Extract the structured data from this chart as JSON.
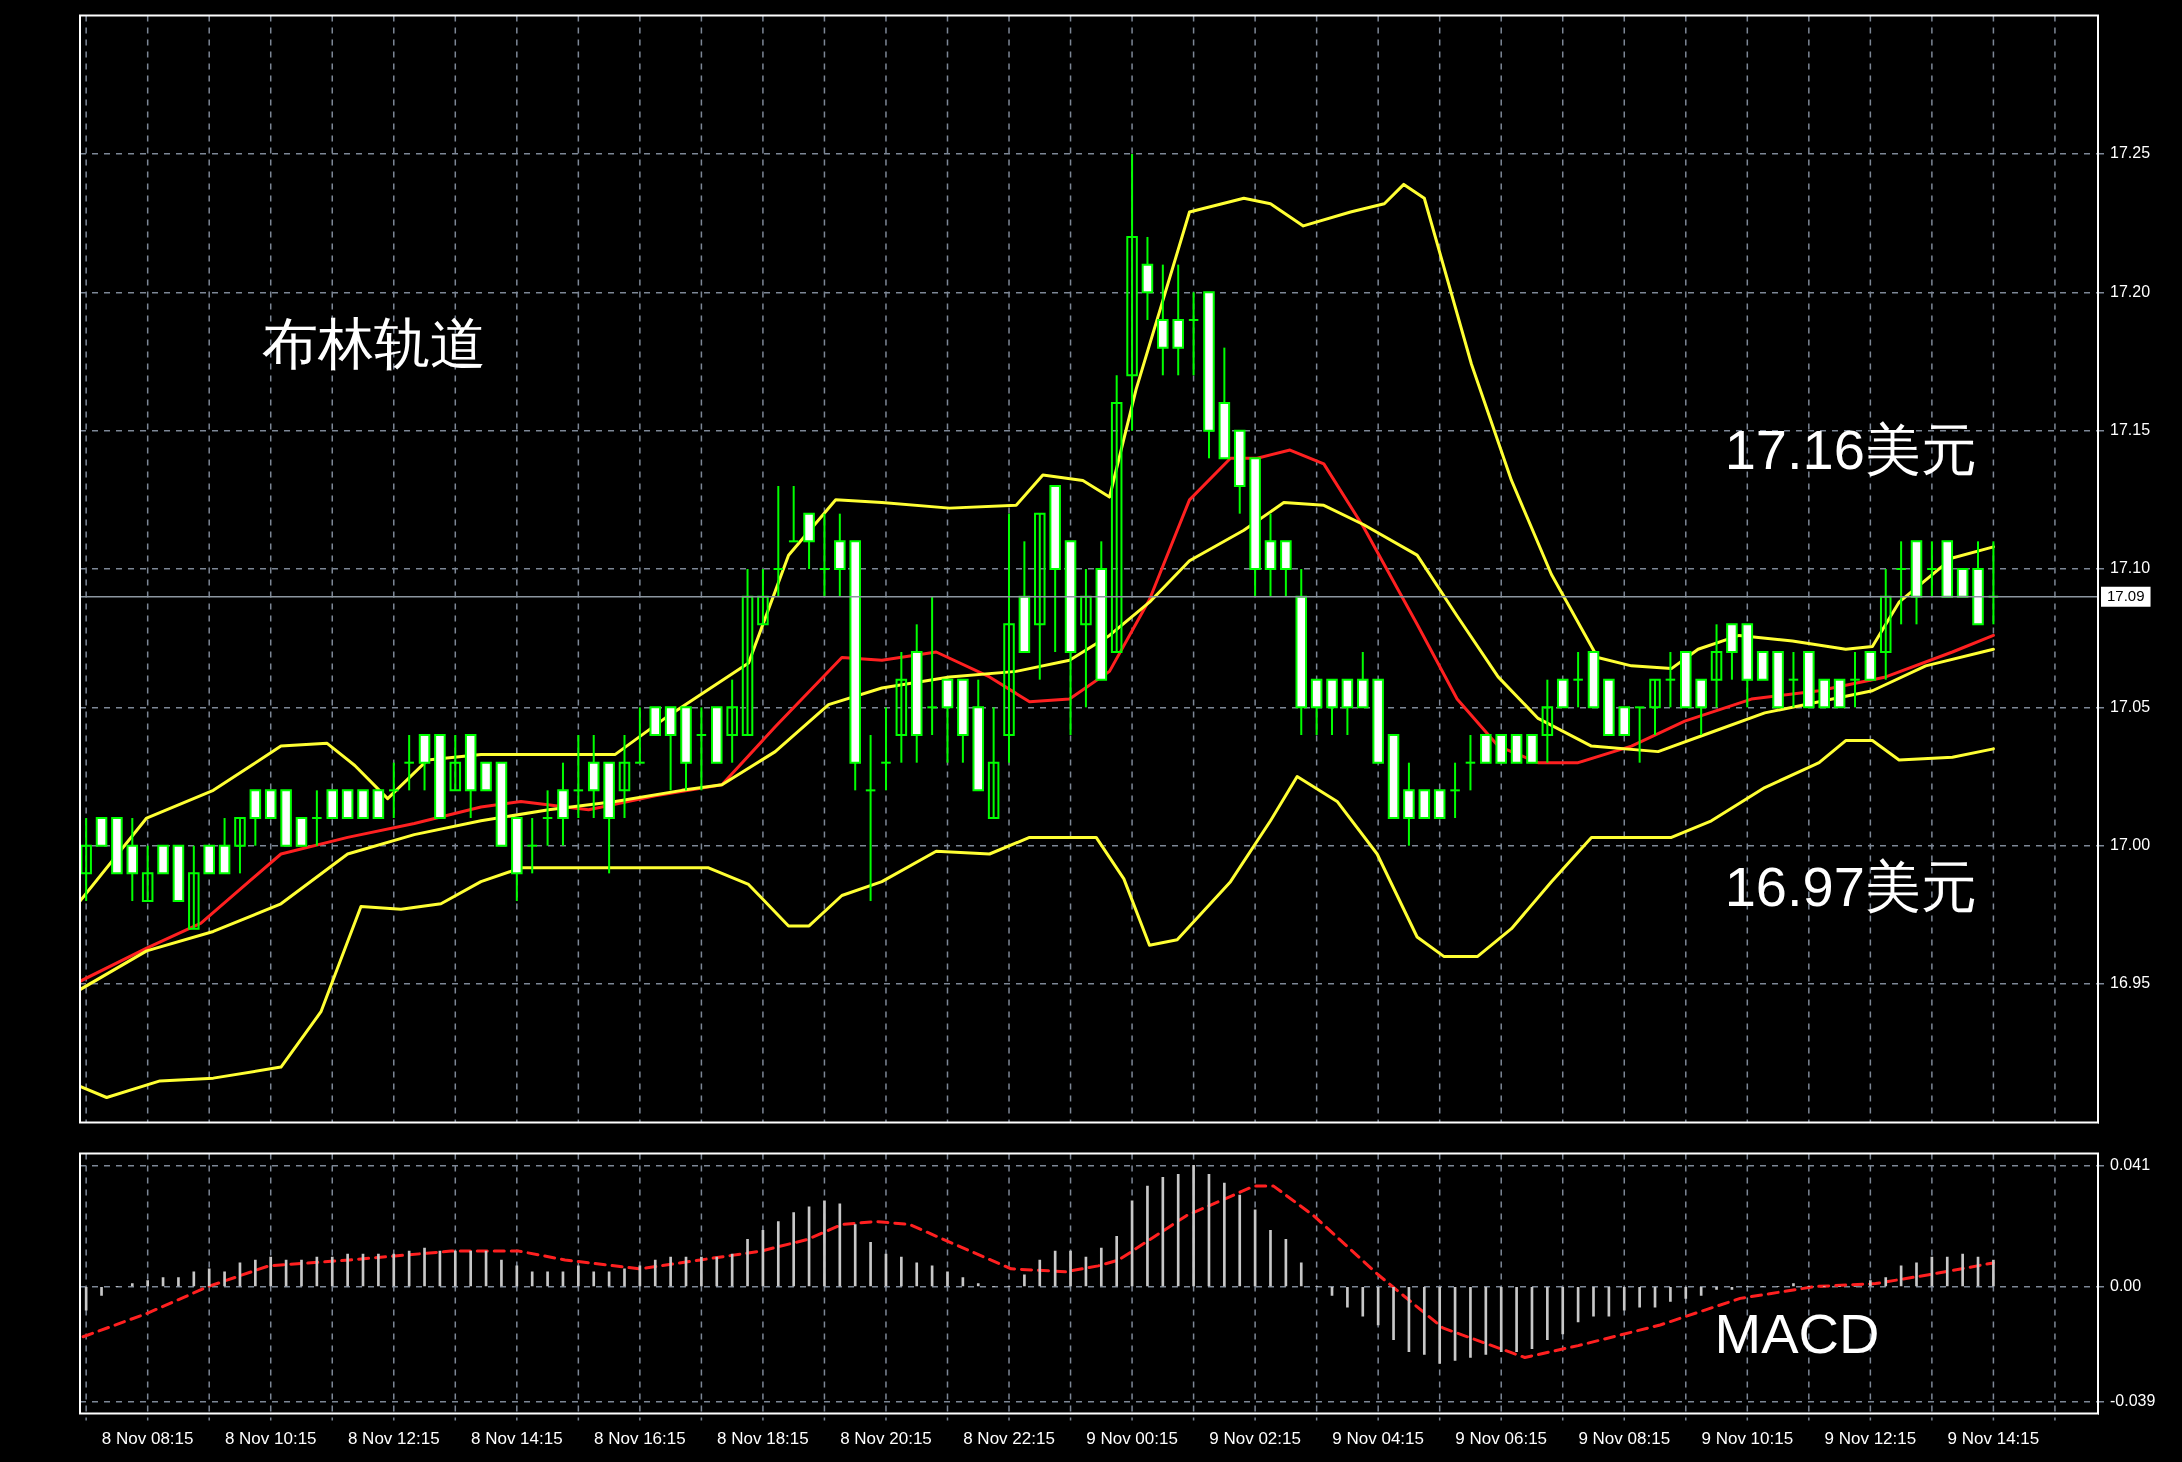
{
  "chart_data": [
    {
      "type": "candlestick",
      "annotations": [
        "布林轨道",
        "17.16美元",
        "16.97美元"
      ],
      "color": "#00ff00",
      "colors": [
        "#00ff00",
        "#ffffff",
        "#ffffff",
        "#ffffff",
        "#00ff00",
        "#ffffff",
        "#ffffff",
        "#00ff00",
        "#ffffff",
        "#ffffff",
        "#00ff00",
        "#ffffff",
        "#ffffff",
        "#ffffff",
        "#ffffff",
        "#00ff00",
        "#ffffff",
        "#ffffff",
        "#ffffff",
        "#ffffff",
        "#00ff00",
        "#00ff00",
        "#ffffff",
        "#ffffff",
        "#00ff00",
        "#ffffff",
        "#ffffff",
        "#ffffff",
        "#ffffff",
        "#00ff00",
        "#00ff00",
        "#ffffff",
        "#00ff00",
        "#ffffff",
        "#ffffff",
        "#00ff00",
        "#00ff00",
        "#ffffff",
        "#ffffff",
        "#ffffff",
        "#00ff00",
        "#ffffff",
        "#00ff00",
        "#00ff00",
        "#00ff00",
        "#00ff00",
        "#00ff00",
        "#ffffff",
        "#00ff00",
        "#ffffff",
        "#ffffff",
        "#00ff00",
        "#00ff00",
        "#00ff00",
        "#ffffff",
        "#00ff00",
        "#ffffff",
        "#ffffff",
        "#ffffff",
        "#00ff00",
        "#00ff00",
        "#ffffff",
        "#00ff00",
        "#ffffff",
        "#ffffff",
        "#00ff00",
        "#ffffff",
        "#00ff00",
        "#00ff00",
        "#ffffff",
        "#ffffff",
        "#ffffff",
        "#00ff00",
        "#ffffff",
        "#ffffff",
        "#ffffff",
        "#ffffff",
        "#ffffff",
        "#ffffff",
        "#ffffff",
        "#ffffff",
        "#ffffff",
        "#ffffff",
        "#ffffff",
        "#ffffff",
        "#ffffff",
        "#ffffff",
        "#ffffff",
        "#ffffff",
        "#00ff00",
        "#00ff00",
        "#ffffff",
        "#ffffff",
        "#ffffff",
        "#ffffff",
        "#00ff00",
        "#ffffff",
        "#00ff00",
        "#ffffff",
        "#ffffff",
        "#ffffff",
        "#00ff00",
        "#00ff00",
        "#00ff00",
        "#ffffff",
        "#ffffff",
        "#00ff00",
        "#ffffff",
        "#ffffff",
        "#ffffff",
        "#ffffff",
        "#00ff00",
        "#ffffff",
        "#ffffff",
        "#ffffff",
        "#00ff00",
        "#ffffff",
        "#00ff00",
        "#00ff00",
        "#ffffff",
        "#00ff00",
        "#ffffff",
        "#ffffff",
        "#ffffff",
        "#00ff00"
      ],
      "x": [
        "--11-08T07:15",
        "--11-08T07:30",
        "--11-08T07:45",
        "--11-08T08:00",
        "--11-08T08:15",
        "--11-08T08:30",
        "--11-08T08:45",
        "--11-08T09:00",
        "--11-08T09:15",
        "--11-08T09:30",
        "--11-08T09:45",
        "--11-08T10:00",
        "--11-08T10:15",
        "--11-08T10:30",
        "--11-08T10:45",
        "--11-08T11:00",
        "--11-08T11:15",
        "--11-08T11:30",
        "--11-08T11:45",
        "--11-08T12:00",
        "--11-08T12:15",
        "--11-08T12:30",
        "--11-08T12:45",
        "--11-08T13:00",
        "--11-08T13:15",
        "--11-08T13:30",
        "--11-08T13:45",
        "--11-08T14:00",
        "--11-08T14:15",
        "--11-08T14:30",
        "--11-08T14:45",
        "--11-08T15:00",
        "--11-08T15:15",
        "--11-08T15:30",
        "--11-08T15:45",
        "--11-08T16:00",
        "--11-08T16:15",
        "--11-08T16:30",
        "--11-08T16:45",
        "--11-08T17:00",
        "--11-08T17:15",
        "--11-08T17:30",
        "--11-08T17:45",
        "--11-08T18:00",
        "--11-08T18:15",
        "--11-08T18:30",
        "--11-08T18:45",
        "--11-08T19:00",
        "--11-08T19:15",
        "--11-08T19:30",
        "--11-08T19:45",
        "--11-08T20:00",
        "--11-08T20:15",
        "--11-08T20:30",
        "--11-08T20:45",
        "--11-08T21:00",
        "--11-08T21:15",
        "--11-08T21:30",
        "--11-08T21:45",
        "--11-08T22:00",
        "--11-08T22:15",
        "--11-08T22:30",
        "--11-08T22:45",
        "--11-08T23:00",
        "--11-08T23:15",
        "--11-08T23:30",
        "--11-08T23:45",
        "--11-09T00:00",
        "--11-09T00:15",
        "--11-09T00:30",
        "--11-09T00:45",
        "--11-09T01:00",
        "--11-09T01:15",
        "--11-09T01:30",
        "--11-09T01:45",
        "--11-09T02:00",
        "--11-09T02:15",
        "--11-09T02:30",
        "--11-09T02:45",
        "--11-09T03:00",
        "--11-09T03:15",
        "--11-09T03:30",
        "--11-09T03:45",
        "--11-09T04:00",
        "--11-09T04:15",
        "--11-09T04:30",
        "--11-09T04:45",
        "--11-09T05:00",
        "--11-09T05:15",
        "--11-09T05:30",
        "--11-09T05:45",
        "--11-09T06:00",
        "--11-09T06:15",
        "--11-09T06:30",
        "--11-09T06:45",
        "--11-09T07:00",
        "--11-09T07:15",
        "--11-09T07:30",
        "--11-09T07:45",
        "--11-09T08:00",
        "--11-09T08:15",
        "--11-09T08:30",
        "--11-09T08:45",
        "--11-09T09:00",
        "--11-09T09:15",
        "--11-09T09:30",
        "--11-09T09:45",
        "--11-09T10:00",
        "--11-09T10:15",
        "--11-09T10:30",
        "--11-09T10:45",
        "--11-09T11:00",
        "--11-09T11:15",
        "--11-09T11:30",
        "--11-09T11:45",
        "--11-09T12:00",
        "--11-09T12:15",
        "--11-09T12:30",
        "--11-09T12:45",
        "--11-09T13:00",
        "--11-09T13:15",
        "--11-09T13:30",
        "--11-09T13:45",
        "--11-09T14:00",
        "--11-09T14:15"
      ],
      "ohlc": [
        [
          16.99,
          17.01,
          16.98,
          17.0
        ],
        [
          17.01,
          17.01,
          17.0,
          17.0
        ],
        [
          17.01,
          17.01,
          16.99,
          16.99
        ],
        [
          17.0,
          17.01,
          16.98,
          16.99
        ],
        [
          16.98,
          17.0,
          16.98,
          16.99
        ],
        [
          17.0,
          17.0,
          16.99,
          16.99
        ],
        [
          17.0,
          17.0,
          16.98,
          16.98
        ],
        [
          16.97,
          17.0,
          16.97,
          16.99
        ],
        [
          17.0,
          17.0,
          16.99,
          16.99
        ],
        [
          17.0,
          17.01,
          16.99,
          16.99
        ],
        [
          17.0,
          17.01,
          16.99,
          17.01
        ],
        [
          17.02,
          17.02,
          17.0,
          17.01
        ],
        [
          17.02,
          17.02,
          17.01,
          17.01
        ],
        [
          17.02,
          17.02,
          17.0,
          17.0
        ],
        [
          17.01,
          17.01,
          17.0,
          17.0
        ],
        [
          17.01,
          17.02,
          17.0,
          17.01
        ],
        [
          17.02,
          17.02,
          17.01,
          17.01
        ],
        [
          17.02,
          17.02,
          17.01,
          17.01
        ],
        [
          17.02,
          17.02,
          17.01,
          17.01
        ],
        [
          17.02,
          17.02,
          17.01,
          17.01
        ],
        [
          17.02,
          17.03,
          17.01,
          17.02
        ],
        [
          17.03,
          17.04,
          17.02,
          17.03
        ],
        [
          17.04,
          17.04,
          17.02,
          17.03
        ],
        [
          17.04,
          17.04,
          17.01,
          17.01
        ],
        [
          17.02,
          17.04,
          17.02,
          17.03
        ],
        [
          17.04,
          17.04,
          17.01,
          17.02
        ],
        [
          17.03,
          17.03,
          17.02,
          17.02
        ],
        [
          17.03,
          17.03,
          17.0,
          17.0
        ],
        [
          17.01,
          17.01,
          16.98,
          16.99
        ],
        [
          17.0,
          17.01,
          16.99,
          17.0
        ],
        [
          17.01,
          17.02,
          17.0,
          17.01
        ],
        [
          17.02,
          17.03,
          17.0,
          17.01
        ],
        [
          17.02,
          17.04,
          17.01,
          17.02
        ],
        [
          17.03,
          17.04,
          17.01,
          17.02
        ],
        [
          17.03,
          17.03,
          16.99,
          17.01
        ],
        [
          17.02,
          17.04,
          17.01,
          17.03
        ],
        [
          17.03,
          17.05,
          17.03,
          17.03
        ],
        [
          17.05,
          17.05,
          17.04,
          17.04
        ],
        [
          17.05,
          17.05,
          17.02,
          17.04
        ],
        [
          17.05,
          17.05,
          17.02,
          17.03
        ],
        [
          17.04,
          17.05,
          17.02,
          17.04
        ],
        [
          17.05,
          17.05,
          17.03,
          17.03
        ],
        [
          17.04,
          17.06,
          17.03,
          17.05
        ],
        [
          17.04,
          17.1,
          17.04,
          17.09
        ],
        [
          17.08,
          17.1,
          17.08,
          17.09
        ],
        [
          17.1,
          17.13,
          17.09,
          17.1
        ],
        [
          17.11,
          17.13,
          17.11,
          17.11
        ],
        [
          17.12,
          17.12,
          17.1,
          17.11
        ],
        [
          17.1,
          17.12,
          17.09,
          17.1
        ],
        [
          17.11,
          17.12,
          17.09,
          17.1
        ],
        [
          17.11,
          17.11,
          17.02,
          17.03
        ],
        [
          17.02,
          17.04,
          16.98,
          17.02
        ],
        [
          17.03,
          17.05,
          17.02,
          17.03
        ],
        [
          17.04,
          17.07,
          17.03,
          17.06
        ],
        [
          17.07,
          17.08,
          17.03,
          17.04
        ],
        [
          17.05,
          17.09,
          17.04,
          17.05
        ],
        [
          17.06,
          17.06,
          17.03,
          17.05
        ],
        [
          17.06,
          17.06,
          17.03,
          17.04
        ],
        [
          17.05,
          17.06,
          17.02,
          17.02
        ],
        [
          17.01,
          17.05,
          17.01,
          17.03
        ],
        [
          17.04,
          17.12,
          17.03,
          17.08
        ],
        [
          17.09,
          17.11,
          17.07,
          17.07
        ],
        [
          17.08,
          17.12,
          17.06,
          17.12
        ],
        [
          17.13,
          17.13,
          17.07,
          17.1
        ],
        [
          17.11,
          17.11,
          17.04,
          17.07
        ],
        [
          17.08,
          17.1,
          17.05,
          17.09
        ],
        [
          17.1,
          17.11,
          17.06,
          17.06
        ],
        [
          17.07,
          17.17,
          17.07,
          17.16
        ],
        [
          17.17,
          17.25,
          17.15,
          17.22
        ],
        [
          17.21,
          17.22,
          17.19,
          17.2
        ],
        [
          17.19,
          17.21,
          17.17,
          17.18
        ],
        [
          17.19,
          17.21,
          17.17,
          17.18
        ],
        [
          17.19,
          17.2,
          17.17,
          17.19
        ],
        [
          17.2,
          17.2,
          17.14,
          17.15
        ],
        [
          17.16,
          17.18,
          17.14,
          17.14
        ],
        [
          17.15,
          17.15,
          17.12,
          17.13
        ],
        [
          17.14,
          17.14,
          17.09,
          17.1
        ],
        [
          17.11,
          17.12,
          17.09,
          17.1
        ],
        [
          17.11,
          17.11,
          17.09,
          17.1
        ],
        [
          17.09,
          17.1,
          17.04,
          17.05
        ],
        [
          17.06,
          17.06,
          17.04,
          17.05
        ],
        [
          17.06,
          17.06,
          17.04,
          17.05
        ],
        [
          17.06,
          17.06,
          17.04,
          17.05
        ],
        [
          17.06,
          17.07,
          17.05,
          17.05
        ],
        [
          17.06,
          17.06,
          17.03,
          17.03
        ],
        [
          17.04,
          17.04,
          17.01,
          17.01
        ],
        [
          17.02,
          17.03,
          17.0,
          17.01
        ],
        [
          17.02,
          17.02,
          17.01,
          17.01
        ],
        [
          17.02,
          17.02,
          17.01,
          17.01
        ],
        [
          17.02,
          17.03,
          17.01,
          17.02
        ],
        [
          17.03,
          17.04,
          17.02,
          17.03
        ],
        [
          17.04,
          17.04,
          17.03,
          17.03
        ],
        [
          17.04,
          17.04,
          17.03,
          17.03
        ],
        [
          17.04,
          17.04,
          17.03,
          17.03
        ],
        [
          17.04,
          17.04,
          17.03,
          17.03
        ],
        [
          17.04,
          17.06,
          17.03,
          17.05
        ],
        [
          17.06,
          17.06,
          17.05,
          17.05
        ],
        [
          17.06,
          17.07,
          17.05,
          17.06
        ],
        [
          17.07,
          17.07,
          17.05,
          17.05
        ],
        [
          17.06,
          17.06,
          17.04,
          17.04
        ],
        [
          17.05,
          17.05,
          17.04,
          17.04
        ],
        [
          17.05,
          17.05,
          17.03,
          17.05
        ],
        [
          17.05,
          17.06,
          17.04,
          17.06
        ],
        [
          17.06,
          17.07,
          17.05,
          17.06
        ],
        [
          17.07,
          17.07,
          17.05,
          17.05
        ],
        [
          17.06,
          17.06,
          17.04,
          17.05
        ],
        [
          17.06,
          17.08,
          17.05,
          17.07
        ],
        [
          17.08,
          17.08,
          17.06,
          17.07
        ],
        [
          17.08,
          17.08,
          17.05,
          17.06
        ],
        [
          17.07,
          17.07,
          17.06,
          17.06
        ],
        [
          17.07,
          17.07,
          17.05,
          17.05
        ],
        [
          17.06,
          17.07,
          17.05,
          17.06
        ],
        [
          17.07,
          17.07,
          17.05,
          17.05
        ],
        [
          17.06,
          17.06,
          17.05,
          17.05
        ],
        [
          17.06,
          17.06,
          17.05,
          17.05
        ],
        [
          17.06,
          17.07,
          17.05,
          17.06
        ],
        [
          17.07,
          17.07,
          17.06,
          17.06
        ],
        [
          17.07,
          17.1,
          17.06,
          17.09
        ],
        [
          17.1,
          17.11,
          17.08,
          17.1
        ],
        [
          17.11,
          17.11,
          17.08,
          17.09
        ],
        [
          17.1,
          17.11,
          17.09,
          17.1
        ],
        [
          17.11,
          17.11,
          17.09,
          17.09
        ],
        [
          17.1,
          17.1,
          17.09,
          17.09
        ],
        [
          17.1,
          17.11,
          17.08,
          17.08
        ],
        [
          17.09,
          17.11,
          17.08,
          17.09
        ]
      ],
      "series": [
        {
          "type": "line",
          "color": "#ffff33",
          "x": [
            "--11-08T07:09",
            "--11-08T08:14",
            "--11-08T09:19",
            "--11-08T10:25",
            "--11-08T11:10",
            "--11-08T11:37",
            "--11-08T12:09",
            "--11-08T12:48",
            "--11-08T13:40",
            "--11-08T15:51",
            "--11-08T16:43",
            "--11-08T18:01",
            "--11-08T18:40",
            "--11-08T19:26",
            "--11-08T20:11",
            "--11-08T21:17",
            "--11-08T22:22",
            "--11-08T22:48",
            "--11-08T23:27",
            "--11-08T23:53",
            "--11-09T00:19",
            "--11-09T01:11",
            "--11-09T02:04",
            "--11-09T02:30",
            "--11-09T03:02",
            "--11-09T03:48",
            "--11-09T04:21",
            "--11-09T04:40",
            "--11-09T05:00",
            "--11-09T05:46",
            "--11-09T06:25",
            "--11-09T07:04",
            "--11-09T07:49",
            "--11-09T08:22",
            "--11-09T09:01",
            "--11-09T09:27",
            "--11-09T10:07",
            "--11-09T10:59",
            "--11-09T11:51",
            "--11-09T12:17",
            "--11-09T12:43",
            "--11-09T13:35",
            "--11-09T14:15"
          ],
          "values": [
            16.98,
            17.01,
            17.02,
            17.036,
            17.037,
            17.029,
            17.017,
            17.031,
            17.033,
            17.033,
            17.047,
            17.066,
            17.105,
            17.125,
            17.124,
            17.122,
            17.123,
            17.134,
            17.132,
            17.126,
            17.165,
            17.229,
            17.234,
            17.232,
            17.224,
            17.229,
            17.232,
            17.239,
            17.234,
            17.174,
            17.132,
            17.098,
            17.068,
            17.065,
            17.064,
            17.071,
            17.076,
            17.074,
            17.071,
            17.072,
            17.088,
            17.104,
            17.108
          ]
        },
        {
          "type": "line",
          "color": "#ffff33",
          "x": [
            "--11-08T07:09",
            "--11-08T08:14",
            "--11-08T09:19",
            "--11-08T10:25",
            "--11-08T11:30",
            "--11-08T12:35",
            "--11-08T13:40",
            "--11-08T14:46",
            "--11-08T15:51",
            "--11-08T16:56",
            "--11-08T17:35",
            "--11-08T18:27",
            "--11-08T19:19",
            "--11-08T20:11",
            "--11-08T21:17",
            "--11-08T22:22",
            "--11-08T23:14",
            "--11-08T23:53",
            "--11-09T00:32",
            "--11-09T01:11",
            "--11-09T02:04",
            "--11-09T02:43",
            "--11-09T03:22",
            "--11-09T04:01",
            "--11-09T04:53",
            "--11-09T05:32",
            "--11-09T06:12",
            "--11-09T06:51",
            "--11-09T07:43",
            "--11-09T08:48",
            "--11-09T09:40",
            "--11-09T10:32",
            "--11-09T11:25",
            "--11-09T12:17",
            "--11-09T13:09",
            "--11-09T14:15"
          ],
          "values": [
            16.948,
            16.962,
            16.969,
            16.979,
            16.997,
            17.004,
            17.009,
            17.013,
            17.016,
            17.02,
            17.022,
            17.034,
            17.051,
            17.057,
            17.061,
            17.063,
            17.067,
            17.076,
            17.088,
            17.103,
            17.114,
            17.124,
            17.123,
            17.116,
            17.105,
            17.083,
            17.061,
            17.046,
            17.036,
            17.034,
            17.041,
            17.048,
            17.052,
            17.056,
            17.065,
            17.071
          ]
        },
        {
          "type": "line",
          "color": "#ffff33",
          "x": [
            "--11-08T07:09",
            "--11-08T07:35",
            "--11-08T08:27",
            "--11-08T09:19",
            "--11-08T10:25",
            "--11-08T11:04",
            "--11-08T11:43",
            "--11-08T12:22",
            "--11-08T13:01",
            "--11-08T13:40",
            "--11-08T14:19",
            "--11-08T15:51",
            "--11-08T17:22",
            "--11-08T18:01",
            "--11-08T18:40",
            "--11-08T19:00",
            "--11-08T19:32",
            "--11-08T20:11",
            "--11-08T21:04",
            "--11-08T21:56",
            "--11-08T22:35",
            "--11-08T23:40",
            "--11-09T00:07",
            "--11-09T00:32",
            "--11-09T00:59",
            "--11-09T01:51",
            "--11-09T02:30",
            "--11-09T02:56",
            "--11-09T03:35",
            "--11-09T04:14",
            "--11-09T04:53",
            "--11-09T05:19",
            "--11-09T05:52",
            "--11-09T06:25",
            "--11-09T07:04",
            "--11-09T07:43",
            "--11-09T09:01",
            "--11-09T09:40",
            "--11-09T10:32",
            "--11-09T11:25",
            "--11-09T11:51",
            "--11-09T12:17",
            "--11-09T12:43",
            "--11-09T13:35",
            "--11-09T14:15"
          ],
          "values": [
            16.913,
            16.909,
            16.915,
            16.916,
            16.92,
            16.94,
            16.978,
            16.977,
            16.979,
            16.987,
            16.992,
            16.992,
            16.992,
            16.986,
            16.971,
            16.971,
            16.982,
            16.987,
            16.998,
            16.997,
            17.003,
            17.003,
            16.988,
            16.964,
            16.966,
            16.987,
            17.009,
            17.025,
            17.016,
            16.997,
            16.967,
            16.96,
            16.96,
            16.97,
            16.987,
            17.003,
            17.003,
            17.009,
            17.021,
            17.03,
            17.038,
            17.038,
            17.031,
            17.032,
            17.035
          ]
        },
        {
          "type": "line",
          "color": "#ff2020",
          "x": [
            "--11-08T07:09",
            "--11-08T08:14",
            "--11-08T09:07",
            "--11-08T10:25",
            "--11-08T11:30",
            "--11-08T12:35",
            "--11-08T13:40",
            "--11-08T14:19",
            "--11-08T15:25",
            "--11-08T16:30",
            "--11-08T17:35",
            "--11-08T18:27",
            "--11-08T19:32",
            "--11-08T20:11",
            "--11-08T21:04",
            "--11-08T21:56",
            "--11-08T22:35",
            "--11-08T23:14",
            "--11-08T23:53",
            "--11-09T00:32",
            "--11-09T01:11",
            "--11-09T01:51",
            "--11-09T02:17",
            "--11-09T02:49",
            "--11-09T03:22",
            "--11-09T04:01",
            "--11-09T04:53",
            "--11-09T05:32",
            "--11-09T06:12",
            "--11-09T06:51",
            "--11-09T07:30",
            "--11-09T08:22",
            "--11-09T09:14",
            "--11-09T10:19",
            "--11-09T11:25",
            "--11-09T12:30",
            "--11-09T13:35",
            "--11-09T14:15"
          ],
          "values": [
            16.951,
            16.963,
            16.972,
            16.997,
            17.003,
            17.008,
            17.014,
            17.016,
            17.013,
            17.018,
            17.022,
            17.043,
            17.068,
            17.067,
            17.07,
            17.061,
            17.052,
            17.053,
            17.063,
            17.089,
            17.125,
            17.14,
            17.14,
            17.143,
            17.138,
            17.115,
            17.08,
            17.053,
            17.036,
            17.03,
            17.03,
            17.036,
            17.045,
            17.053,
            17.056,
            17.061,
            17.07,
            17.076
          ]
        }
      ],
      "xlim": [
        "--11-08T07:09",
        "--11-09T15:57"
      ],
      "xticks": [
        {
          "value": "--11-08T07:15",
          "label": null
        },
        {
          "value": "--11-08T08:15",
          "label": null
        },
        {
          "value": "--11-08T09:15",
          "label": null
        },
        {
          "value": "--11-08T10:15",
          "label": null
        },
        {
          "value": "--11-08T11:15",
          "label": null
        },
        {
          "value": "--11-08T12:15",
          "label": null
        },
        {
          "value": "--11-08T13:15",
          "label": null
        },
        {
          "value": "--11-08T14:15",
          "label": null
        },
        {
          "value": "--11-08T15:15",
          "label": null
        },
        {
          "value": "--11-08T16:15",
          "label": null
        },
        {
          "value": "--11-08T17:15",
          "label": null
        },
        {
          "value": "--11-08T18:15",
          "label": null
        },
        {
          "value": "--11-08T19:15",
          "label": null
        },
        {
          "value": "--11-08T20:15",
          "label": null
        },
        {
          "value": "--11-08T21:15",
          "label": null
        },
        {
          "value": "--11-08T22:15",
          "label": null
        },
        {
          "value": "--11-08T23:15",
          "label": null
        },
        {
          "value": "--11-09T00:15",
          "label": null
        },
        {
          "value": "--11-09T01:15",
          "label": null
        },
        {
          "value": "--11-09T02:15",
          "label": null
        },
        {
          "value": "--11-09T03:15",
          "label": null
        },
        {
          "value": "--11-09T04:15",
          "label": null
        },
        {
          "value": "--11-09T05:15",
          "label": null
        },
        {
          "value": "--11-09T06:15",
          "label": null
        },
        {
          "value": "--11-09T07:15",
          "label": null
        },
        {
          "value": "--11-09T08:15",
          "label": null
        },
        {
          "value": "--11-09T09:15",
          "label": null
        },
        {
          "value": "--11-09T10:15",
          "label": null
        },
        {
          "value": "--11-09T11:15",
          "label": null
        },
        {
          "value": "--11-09T12:15",
          "label": null
        },
        {
          "value": "--11-09T13:15",
          "label": null
        },
        {
          "value": "--11-09T14:15",
          "label": null
        },
        {
          "value": "--11-09T15:15",
          "label": null
        }
      ],
      "ylim": [
        16.9,
        17.3
      ],
      "yticks": [
        16.95,
        {
          "value": 17,
          "label": "17.00"
        },
        17.05,
        {
          "value": 17.1,
          "label": "17.10"
        },
        17.15,
        {
          "value": 17.2,
          "label": "17.20"
        },
        17.25
      ],
      "ref_lines": [
        {
          "axis": "y",
          "value": 17.09,
          "label": "17.09",
          "color": "#8c96a0"
        }
      ],
      "grid": true,
      "tick_labels": "y"
    },
    {
      "type": "bar",
      "annotations": [
        "MACD"
      ],
      "x": [
        "--11-08T07:15",
        "--11-08T07:30",
        "--11-08T07:45",
        "--11-08T08:00",
        "--11-08T08:15",
        "--11-08T08:30",
        "--11-08T08:45",
        "--11-08T09:00",
        "--11-08T09:15",
        "--11-08T09:30",
        "--11-08T09:45",
        "--11-08T10:00",
        "--11-08T10:15",
        "--11-08T10:30",
        "--11-08T10:45",
        "--11-08T11:00",
        "--11-08T11:15",
        "--11-08T11:30",
        "--11-08T11:45",
        "--11-08T12:00",
        "--11-08T12:15",
        "--11-08T12:30",
        "--11-08T12:45",
        "--11-08T13:00",
        "--11-08T13:15",
        "--11-08T13:30",
        "--11-08T13:45",
        "--11-08T14:00",
        "--11-08T14:15",
        "--11-08T14:30",
        "--11-08T14:45",
        "--11-08T15:00",
        "--11-08T15:15",
        "--11-08T15:30",
        "--11-08T15:45",
        "--11-08T16:00",
        "--11-08T16:15",
        "--11-08T16:30",
        "--11-08T16:45",
        "--11-08T17:00",
        "--11-08T17:15",
        "--11-08T17:30",
        "--11-08T17:45",
        "--11-08T18:00",
        "--11-08T18:15",
        "--11-08T18:30",
        "--11-08T18:45",
        "--11-08T19:00",
        "--11-08T19:15",
        "--11-08T19:30",
        "--11-08T19:45",
        "--11-08T20:00",
        "--11-08T20:15",
        "--11-08T20:30",
        "--11-08T20:45",
        "--11-08T21:00",
        "--11-08T21:15",
        "--11-08T21:30",
        "--11-08T21:45",
        "--11-08T22:00",
        "--11-08T22:15",
        "--11-08T22:30",
        "--11-08T22:45",
        "--11-08T23:00",
        "--11-08T23:15",
        "--11-08T23:30",
        "--11-08T23:45",
        "--11-09T00:00",
        "--11-09T00:15",
        "--11-09T00:30",
        "--11-09T00:45",
        "--11-09T01:00",
        "--11-09T01:15",
        "--11-09T01:30",
        "--11-09T01:45",
        "--11-09T02:00",
        "--11-09T02:15",
        "--11-09T02:30",
        "--11-09T02:45",
        "--11-09T03:00",
        "--11-09T03:15",
        "--11-09T03:30",
        "--11-09T03:45",
        "--11-09T04:00",
        "--11-09T04:15",
        "--11-09T04:30",
        "--11-09T04:45",
        "--11-09T05:00",
        "--11-09T05:15",
        "--11-09T05:30",
        "--11-09T05:45",
        "--11-09T06:00",
        "--11-09T06:15",
        "--11-09T06:30",
        "--11-09T06:45",
        "--11-09T07:00",
        "--11-09T07:15",
        "--11-09T07:30",
        "--11-09T07:45",
        "--11-09T08:00",
        "--11-09T08:15",
        "--11-09T08:30",
        "--11-09T08:45",
        "--11-09T09:00",
        "--11-09T09:15",
        "--11-09T09:30",
        "--11-09T09:45",
        "--11-09T10:00",
        "--11-09T10:15",
        "--11-09T10:30",
        "--11-09T10:45",
        "--11-09T11:00",
        "--11-09T11:15",
        "--11-09T11:30",
        "--11-09T11:45",
        "--11-09T12:00",
        "--11-09T12:15",
        "--11-09T12:30",
        "--11-09T12:45",
        "--11-09T13:00",
        "--11-09T13:15",
        "--11-09T13:30",
        "--11-09T13:45",
        "--11-09T14:00",
        "--11-09T14:15"
      ],
      "series": [
        {
          "color": "#c8c8c8",
          "values": [
            -0.008,
            -0.003,
            0,
            0.001,
            0.002,
            0.003,
            0.003,
            0.005,
            0.006,
            0.005,
            0.008,
            0.009,
            0.01,
            0.009,
            0.009,
            0.01,
            0.01,
            0.011,
            0.011,
            0.011,
            0.011,
            0.012,
            0.013,
            0.012,
            0.012,
            0.012,
            0.012,
            0.009,
            0.007,
            0.005,
            0.005,
            0.005,
            0.007,
            0.005,
            0.005,
            0.006,
            0.007,
            0.009,
            0.01,
            0.01,
            0.01,
            0.01,
            0.011,
            0.016,
            0.019,
            0.022,
            0.025,
            0.027,
            0.029,
            0.028,
            0.021,
            0.015,
            0.011,
            0.01,
            0.008,
            0.007,
            0.005,
            0.003,
            0.001,
            0,
            0,
            0.004,
            0.009,
            0.012,
            0.012,
            0.01,
            0.013,
            0.017,
            0.029,
            0.034,
            0.037,
            0.038,
            0.041,
            0.038,
            0.035,
            0.031,
            0.026,
            0.019,
            0.016,
            0.008,
            0,
            -0.003,
            -0.007,
            -0.01,
            -0.013,
            -0.018,
            -0.022,
            -0.023,
            -0.026,
            -0.025,
            -0.024,
            -0.023,
            -0.022,
            -0.022,
            -0.021,
            -0.018,
            -0.016,
            -0.012,
            -0.01,
            -0.01,
            -0.008,
            -0.007,
            -0.007,
            -0.005,
            -0.004,
            -0.003,
            -0.001,
            -0.001,
            0,
            0,
            0,
            0.001,
            0,
            0,
            0,
            0,
            0.002,
            0.003,
            0.007,
            0.008,
            0.01,
            0.01,
            0.011,
            0.01,
            0.009
          ]
        },
        {
          "type": "line",
          "color": "#ff2020",
          "line_style": "dashed",
          "x": [
            "--11-08T07:12",
            "--11-08T08:15",
            "--11-08T09:14",
            "--11-08T10:13",
            "--11-08T11:32",
            "--11-08T13:11",
            "--11-08T14:17",
            "--11-08T15:02",
            "--11-08T16:15",
            "--11-08T17:14",
            "--11-08T18:13",
            "--11-08T18:59",
            "--11-08T19:32",
            "--11-08T20:05",
            "--11-08T20:38",
            "--11-08T21:24",
            "--11-08T22:17",
            "--11-08T23:10",
            "--11-08T23:42",
            "--11-09T00:02",
            "--11-09T01:08",
            "--11-09T02:14",
            "--11-09T02:33",
            "--11-09T03:12",
            "--11-09T04:15",
            "--11-09T05:18",
            "--11-09T06:38",
            "--11-09T07:30",
            "--11-09T08:50",
            "--11-09T10:08",
            "--11-09T11:21",
            "--11-09T12:20",
            "--11-09T13:12",
            "--11-09T14:15"
          ],
          "values": [
            -0.017,
            -0.009,
            0,
            0.007,
            0.009,
            0.012,
            0.012,
            0.009,
            0.006,
            0.009,
            0.012,
            0.016,
            0.021,
            0.022,
            0.021,
            0.014,
            0.006,
            0.005,
            0.007,
            0.009,
            0.024,
            0.034,
            0.034,
            0.024,
            0.004,
            -0.014,
            -0.024,
            -0.02,
            -0.013,
            -0.004,
            0,
            0.001,
            0.004,
            0.008
          ]
        }
      ],
      "xlim": [
        "--11-08T07:09",
        "--11-09T15:57"
      ],
      "xticks": [
        {
          "value": "--11-08T07:15",
          "label": null
        },
        {
          "value": "--11-08T08:15",
          "label": "8 Nov 08:15"
        },
        {
          "value": "--11-08T09:15",
          "label": null
        },
        {
          "value": "--11-08T10:15",
          "label": "8 Nov 10:15"
        },
        {
          "value": "--11-08T11:15",
          "label": null
        },
        {
          "value": "--11-08T12:15",
          "label": "8 Nov 12:15"
        },
        {
          "value": "--11-08T13:15",
          "label": null
        },
        {
          "value": "--11-08T14:15",
          "label": "8 Nov 14:15"
        },
        {
          "value": "--11-08T15:15",
          "label": null
        },
        {
          "value": "--11-08T16:15",
          "label": "8 Nov 16:15"
        },
        {
          "value": "--11-08T17:15",
          "label": null
        },
        {
          "value": "--11-08T18:15",
          "label": "8 Nov 18:15"
        },
        {
          "value": "--11-08T19:15",
          "label": null
        },
        {
          "value": "--11-08T20:15",
          "label": "8 Nov 20:15"
        },
        {
          "value": "--11-08T21:15",
          "label": null
        },
        {
          "value": "--11-08T22:15",
          "label": "8 Nov 22:15"
        },
        {
          "value": "--11-08T23:15",
          "label": null
        },
        {
          "value": "--11-09T00:15",
          "label": "9 Nov 00:15"
        },
        {
          "value": "--11-09T01:15",
          "label": null
        },
        {
          "value": "--11-09T02:15",
          "label": "9 Nov 02:15"
        },
        {
          "value": "--11-09T03:15",
          "label": null
        },
        {
          "value": "--11-09T04:15",
          "label": "9 Nov 04:15"
        },
        {
          "value": "--11-09T05:15",
          "label": null
        },
        {
          "value": "--11-09T06:15",
          "label": "9 Nov 06:15"
        },
        {
          "value": "--11-09T07:15",
          "label": null
        },
        {
          "value": "--11-09T08:15",
          "label": "9 Nov 08:15"
        },
        {
          "value": "--11-09T09:15",
          "label": null
        },
        {
          "value": "--11-09T10:15",
          "label": "9 Nov 10:15"
        },
        {
          "value": "--11-09T11:15",
          "label": null
        },
        {
          "value": "--11-09T12:15",
          "label": "9 Nov 12:15"
        },
        {
          "value": "--11-09T13:15",
          "label": null
        },
        {
          "value": "--11-09T14:15",
          "label": "9 Nov 14:15"
        },
        {
          "value": "--11-09T15:15",
          "label": null
        }
      ],
      "ylim": [
        -0.043,
        0.045
      ],
      "yticks": [
        -0.039,
        {
          "value": 0,
          "label": "0.00"
        },
        0.041
      ],
      "grid": true
    }
  ]
}
